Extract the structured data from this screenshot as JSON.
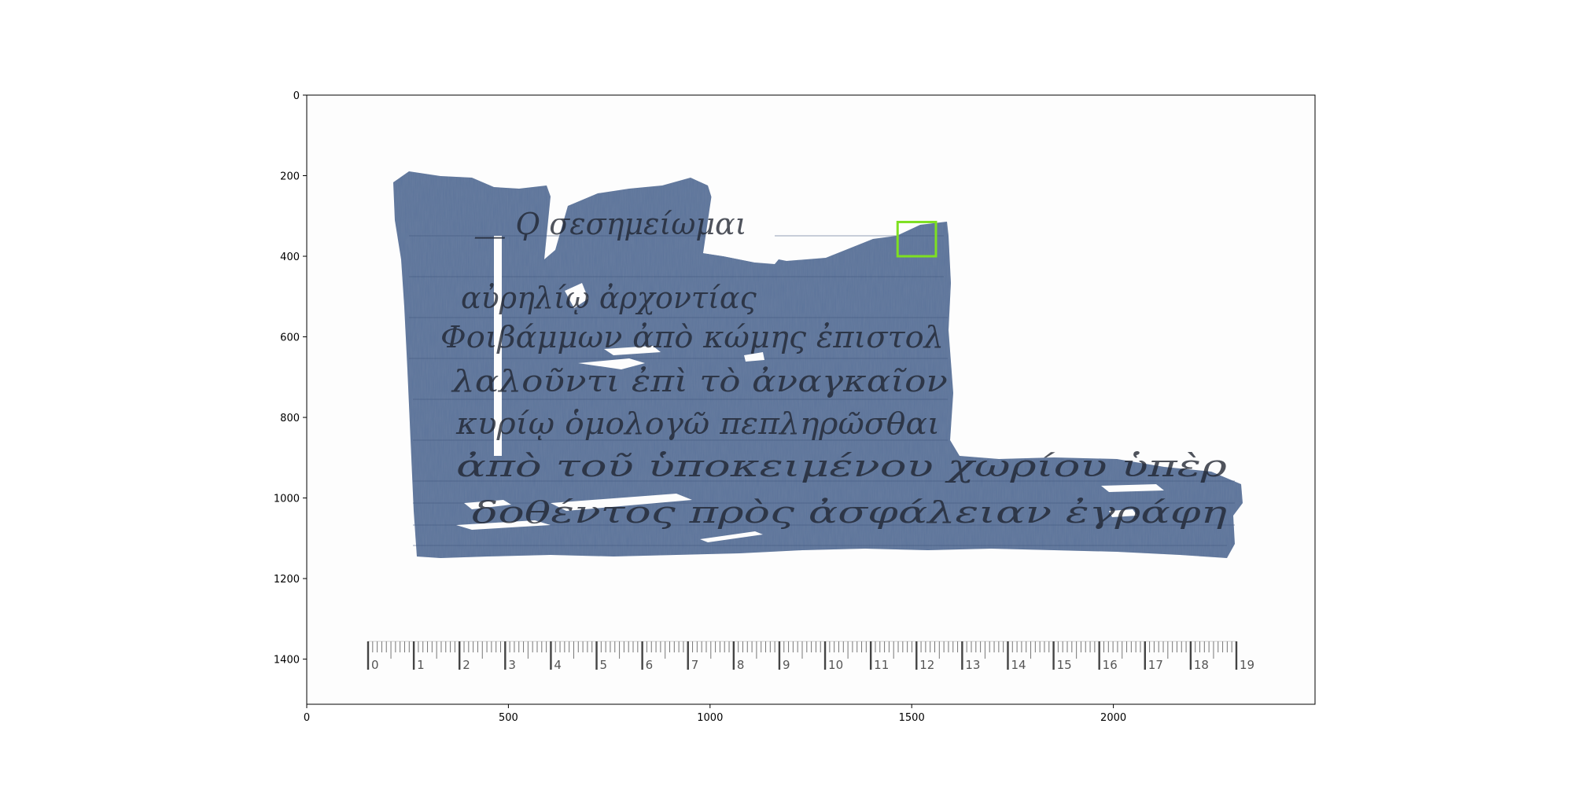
{
  "axes": {
    "x_ticks": [
      "0",
      "500",
      "1000",
      "1500",
      "2000"
    ],
    "x_tick_values": [
      0,
      500,
      1000,
      1500,
      2000
    ],
    "y_ticks": [
      "0",
      "200",
      "400",
      "600",
      "800",
      "1000",
      "1200",
      "1400"
    ],
    "y_tick_values": [
      0,
      200,
      400,
      600,
      800,
      1000,
      1200,
      1400
    ],
    "xlim": [
      0,
      2500
    ],
    "ylim": [
      1512,
      0
    ]
  },
  "ruler": {
    "numbers": [
      "0",
      "1",
      "2",
      "3",
      "4",
      "5",
      "6",
      "7",
      "8",
      "9",
      "10",
      "11",
      "12",
      "13",
      "14",
      "15",
      "16",
      "17",
      "18",
      "19"
    ]
  },
  "highlight_box": {
    "color": "#7ee021",
    "x_range": [
      1465,
      1560
    ],
    "y_range": [
      315,
      400
    ]
  },
  "papyrus": {
    "color": "#5b739a",
    "ink_color": "#1f2430",
    "lines": [
      "⸏ Ϙ σεσημείωμαι",
      "αὐρηλίῳ ἀρχοντίας",
      "Φοιβάμμων ἀπὸ κώμης ἐπιστολ",
      "λαλοῦντι ἐπὶ τὸ ἀναγκαῖον",
      "κυρίῳ ὁμολογῶ πεπληρῶσθαι",
      "ἀπὸ τοῦ ὑποκειμένου χωρίου ὑπὲρ",
      "δοθέντος πρὸς ἀσφάλειαν ἐγράφη"
    ]
  }
}
